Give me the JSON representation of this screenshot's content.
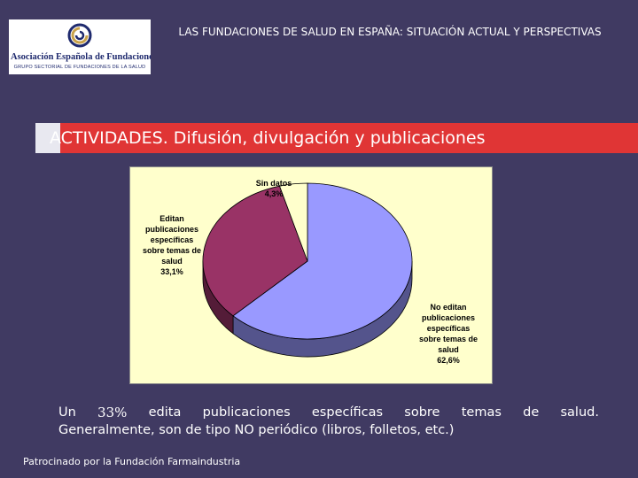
{
  "logo": {
    "name": "Asociación Española de Fundaciones",
    "subtitle": "GRUPO SECTORIAL DE FUNDACIONES DE LA SALUD",
    "icon": "aef-logo-icon",
    "colors": {
      "navy": "#1f2a6e",
      "gold": "#c9a24a"
    }
  },
  "header": {
    "title": "LAS FUNDACIONES DE SALUD EN ESPAÑA: SITUACIÓN ACTUAL Y PERSPECTIVAS"
  },
  "slide": {
    "title": "ACTIVIDADES. Difusión, divulgación y publicaciones"
  },
  "chart_data": {
    "type": "pie",
    "style": "3d",
    "background": "#ffffcc",
    "slices": [
      {
        "label": [
          "No editan",
          "publicaciones",
          "específicas",
          "sobre temas de",
          "salud"
        ],
        "value_label": "62,6%",
        "value": 62.6,
        "color": "#9999ff"
      },
      {
        "label": [
          "Editan",
          "publicaciones",
          "específicas",
          "sobre temas de",
          "salud"
        ],
        "value_label": "33,1%",
        "value": 33.1,
        "color": "#993366"
      },
      {
        "label": [
          "Sin datos"
        ],
        "value_label": "4,3%",
        "value": 4.3,
        "color": "#ffffcc"
      }
    ]
  },
  "caption": {
    "line1_words": [
      "Un",
      "33%",
      "edita",
      "publicaciones",
      "específicas",
      "sobre",
      "temas",
      "de",
      "salud."
    ],
    "line2": "Generalmente, son de tipo NO periódico (libros, folletos, etc.)"
  },
  "footer": {
    "text": "Patrocinado por la Fundación Farmaindustria"
  },
  "colors": {
    "background": "#403a62",
    "title_bar": "#e03535"
  }
}
